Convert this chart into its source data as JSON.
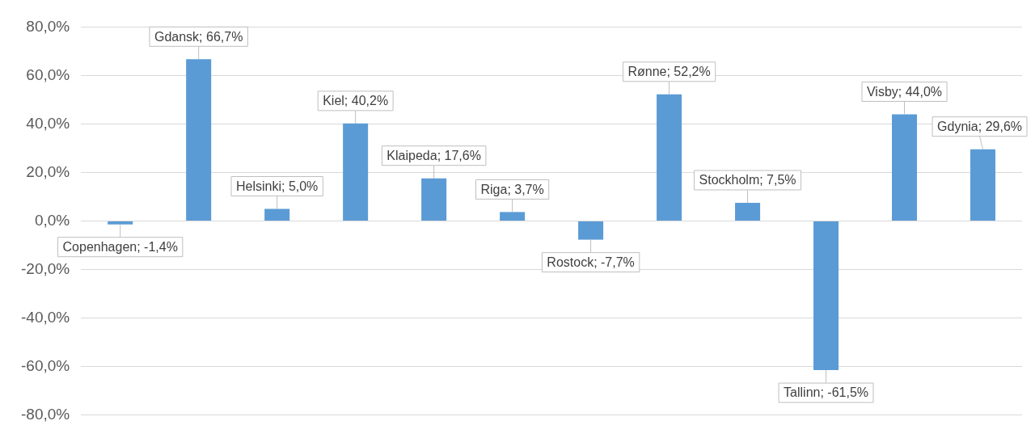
{
  "chart_data": {
    "type": "bar",
    "categories": [
      null,
      null,
      null,
      null,
      null,
      null,
      null,
      null,
      null,
      null,
      null,
      null
    ],
    "values": [
      -1.4,
      66.7,
      5.0,
      40.2,
      17.6,
      3.7,
      -7.7,
      52.2,
      7.5,
      -61.5,
      44.0,
      29.6
    ],
    "value_labels": [
      "Copenhagen; -1,4%",
      "Gdansk; 66,7%",
      "Helsinki; 5,0%",
      "Kiel; 40,2%",
      "Klaipeda; 17,6%",
      "Riga; 3,7%",
      "Rostock; -7,7%",
      "Rønne; 52,2%",
      "Stockholm; 7,5%",
      "Tallinn; -61,5%",
      "Visby; 44,0%",
      "Gdynia; 29,6%"
    ],
    "color": "#5b9bd5",
    "ylim": [
      -80,
      80
    ],
    "yticks": [
      {
        "value": -80,
        "label": "-80,0%"
      },
      {
        "value": -60,
        "label": "-60,0%"
      },
      {
        "value": -40,
        "label": "-40,0%"
      },
      {
        "value": -20,
        "label": "-20,0%"
      },
      {
        "value": 0,
        "label": "0,0%"
      },
      {
        "value": 20,
        "label": "20,0%"
      },
      {
        "value": 40,
        "label": "40,0%"
      },
      {
        "value": 60,
        "label": "60,0%"
      },
      {
        "value": 80,
        "label": "80,0%"
      }
    ],
    "grid": "y",
    "legend": false,
    "tick_labels": "y"
  }
}
